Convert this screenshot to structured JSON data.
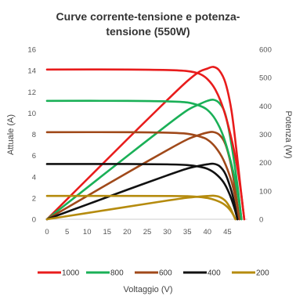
{
  "chart_data": {
    "type": "line",
    "title_lines": [
      "Curve corrente-tensione e potenza-",
      "tensione  (550W)"
    ],
    "xlabel": "Voltaggio (V)",
    "ylabel_left": "Attuale (A)",
    "ylabel_right": "Potenza (W)",
    "xlim": [
      0,
      50
    ],
    "ylim_left": [
      0,
      16
    ],
    "ylim_right": [
      0,
      600
    ],
    "x_ticks": [
      "0",
      "5",
      "10",
      "15",
      "20",
      "25",
      "30",
      "35",
      "40",
      "45"
    ],
    "y_left_ticks": [
      "0",
      "2",
      "4",
      "6",
      "8",
      "10",
      "12",
      "14",
      "16"
    ],
    "y_right_ticks": [
      "0",
      "100",
      "200",
      "300",
      "400",
      "500",
      "600"
    ],
    "grid": false,
    "legend_position": "bottom",
    "series": [
      {
        "name": "1000",
        "color": "#e81c1c",
        "current": [
          [
            0,
            14.1
          ],
          [
            20,
            14.1
          ],
          [
            30,
            14.05
          ],
          [
            35,
            13.95
          ],
          [
            38,
            13.7
          ],
          [
            40,
            13.2
          ],
          [
            42,
            12.2
          ],
          [
            44,
            10.4
          ],
          [
            46,
            7.6
          ],
          [
            47.5,
            4.8
          ],
          [
            48.5,
            2.2
          ],
          [
            49.2,
            0
          ]
        ],
        "power": [
          [
            0,
            0
          ],
          [
            10,
            141
          ],
          [
            20,
            282
          ],
          [
            30,
            421
          ],
          [
            35,
            488
          ],
          [
            38,
            521
          ],
          [
            40,
            532
          ],
          [
            41.5,
            538
          ],
          [
            43,
            525
          ],
          [
            44.5,
            482
          ],
          [
            46,
            385
          ],
          [
            47.2,
            250
          ],
          [
            48.3,
            110
          ],
          [
            49.2,
            0
          ]
        ]
      },
      {
        "name": "800",
        "color": "#1ab057",
        "current": [
          [
            0,
            11.15
          ],
          [
            20,
            11.15
          ],
          [
            30,
            11.1
          ],
          [
            35,
            11.0
          ],
          [
            38,
            10.7
          ],
          [
            40,
            10.3
          ],
          [
            42,
            9.4
          ],
          [
            44,
            7.8
          ],
          [
            46,
            5.2
          ],
          [
            47.5,
            2.6
          ],
          [
            48.5,
            0
          ]
        ],
        "power": [
          [
            0,
            0
          ],
          [
            10,
            111.5
          ],
          [
            20,
            223
          ],
          [
            30,
            333
          ],
          [
            35,
            385
          ],
          [
            38,
            406
          ],
          [
            40,
            418
          ],
          [
            41.5,
            422
          ],
          [
            43,
            410
          ],
          [
            44.5,
            370
          ],
          [
            46,
            265
          ],
          [
            47.5,
            120
          ],
          [
            48.5,
            0
          ]
        ]
      },
      {
        "name": "600",
        "color": "#a0491a",
        "current": [
          [
            0,
            8.2
          ],
          [
            20,
            8.2
          ],
          [
            30,
            8.15
          ],
          [
            35,
            8.05
          ],
          [
            38,
            7.8
          ],
          [
            40,
            7.5
          ],
          [
            42,
            6.8
          ],
          [
            44,
            5.6
          ],
          [
            46,
            3.6
          ],
          [
            47.2,
            1.6
          ],
          [
            48,
            0
          ]
        ],
        "power": [
          [
            0,
            0
          ],
          [
            10,
            82
          ],
          [
            20,
            164
          ],
          [
            30,
            244
          ],
          [
            35,
            282
          ],
          [
            38,
            298
          ],
          [
            40,
            306
          ],
          [
            41.5,
            308
          ],
          [
            43,
            298
          ],
          [
            44.5,
            265
          ],
          [
            46,
            185
          ],
          [
            47.2,
            80
          ],
          [
            48,
            0
          ]
        ]
      },
      {
        "name": "400",
        "color": "#111111",
        "current": [
          [
            0,
            5.2
          ],
          [
            20,
            5.2
          ],
          [
            30,
            5.17
          ],
          [
            35,
            5.1
          ],
          [
            38,
            4.95
          ],
          [
            40,
            4.75
          ],
          [
            42,
            4.3
          ],
          [
            44,
            3.5
          ],
          [
            45.5,
            2.4
          ],
          [
            46.8,
            1.0
          ],
          [
            47.5,
            0
          ]
        ],
        "power": [
          [
            0,
            0
          ],
          [
            10,
            52
          ],
          [
            20,
            104
          ],
          [
            30,
            155
          ],
          [
            35,
            179
          ],
          [
            38,
            189
          ],
          [
            40,
            194
          ],
          [
            41.5,
            196
          ],
          [
            43,
            188
          ],
          [
            44.5,
            160
          ],
          [
            46,
            100
          ],
          [
            47,
            40
          ],
          [
            47.5,
            0
          ]
        ]
      },
      {
        "name": "200",
        "color": "#b58b0e",
        "current": [
          [
            0,
            2.2
          ],
          [
            20,
            2.2
          ],
          [
            30,
            2.19
          ],
          [
            35,
            2.17
          ],
          [
            38,
            2.1
          ],
          [
            40,
            2.0
          ],
          [
            42,
            1.8
          ],
          [
            44,
            1.45
          ],
          [
            45.5,
            0.95
          ],
          [
            46.5,
            0.4
          ],
          [
            47,
            0
          ]
        ],
        "power": [
          [
            0,
            0
          ],
          [
            10,
            22
          ],
          [
            20,
            44
          ],
          [
            30,
            66
          ],
          [
            35,
            76
          ],
          [
            38,
            80
          ],
          [
            40,
            82
          ],
          [
            41.5,
            83
          ],
          [
            43,
            79
          ],
          [
            44.5,
            65
          ],
          [
            45.7,
            40
          ],
          [
            46.6,
            12
          ],
          [
            47,
            0
          ]
        ]
      }
    ]
  }
}
